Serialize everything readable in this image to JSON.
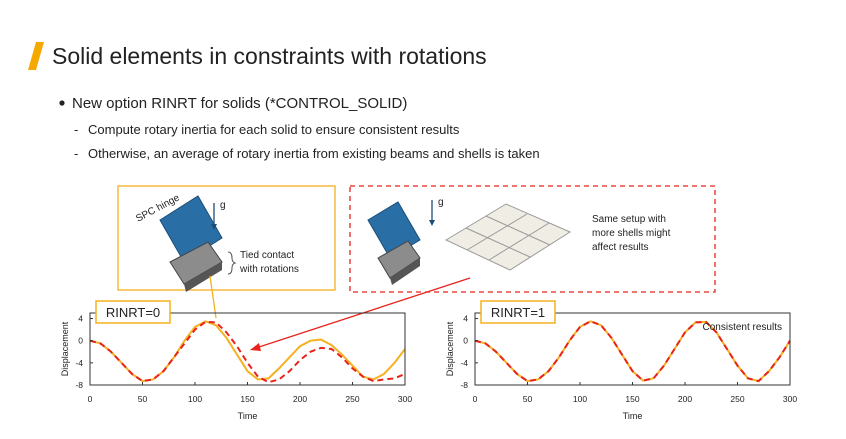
{
  "header": {
    "title": "Solid elements in constraints with rotations"
  },
  "bullets": {
    "main": "New option RINRT for solids (*CONTROL_SOLID)",
    "subs": [
      "Compute rotary inertia for each solid to ensure consistent results",
      "Otherwise, an average of rotary inertia from existing beams and shells is taken"
    ]
  },
  "diagram": {
    "left": {
      "hinge": "SPC hinge",
      "gravity": "g",
      "contact": [
        "Tied contact",
        "with rotations"
      ]
    },
    "right": {
      "gravity": "g",
      "note": [
        "Same setup with",
        "more shells might",
        "affect results"
      ]
    }
  },
  "chart_data": [
    {
      "type": "line",
      "label": "RINRT=0",
      "xlabel": "Time",
      "ylabel": "Displacement",
      "xlim": [
        0,
        300
      ],
      "ylim": [
        -8,
        5
      ],
      "xticks": [
        0,
        50,
        100,
        150,
        200,
        250,
        300
      ],
      "yticks": [
        4,
        0,
        -4,
        -8
      ],
      "x": [
        0,
        10,
        20,
        30,
        40,
        50,
        60,
        70,
        80,
        90,
        100,
        110,
        120,
        130,
        140,
        150,
        160,
        170,
        180,
        190,
        200,
        210,
        220,
        230,
        240,
        250,
        260,
        270,
        280,
        290,
        300
      ],
      "series": [
        {
          "color": "#f5b120",
          "dash": false,
          "values": [
            0,
            -0.5,
            -2,
            -4,
            -6,
            -7.3,
            -7,
            -5.5,
            -3,
            0,
            2.5,
            3.5,
            2.8,
            0.5,
            -2.5,
            -5.5,
            -7,
            -6.8,
            -5,
            -3,
            -1,
            0,
            0.2,
            -0.8,
            -2.5,
            -4.5,
            -6.5,
            -7,
            -6,
            -4,
            -1.5
          ]
        },
        {
          "color": "#e8241c",
          "dash": true,
          "values": [
            0,
            -0.5,
            -2,
            -4,
            -6,
            -7.3,
            -7,
            -5.5,
            -3,
            -0.5,
            2,
            3.4,
            3.3,
            1.5,
            -1,
            -4,
            -6.5,
            -7.5,
            -7,
            -5.5,
            -3.5,
            -2,
            -1.3,
            -1.5,
            -3,
            -5,
            -6.5,
            -7.3,
            -7,
            -6.8,
            -6
          ]
        }
      ]
    },
    {
      "type": "line",
      "label": "RINRT=1",
      "xlabel": "Time",
      "ylabel": "Displacement",
      "annotation": "Consistent results",
      "xlim": [
        0,
        300
      ],
      "ylim": [
        -8,
        5
      ],
      "xticks": [
        0,
        50,
        100,
        150,
        200,
        250,
        300
      ],
      "yticks": [
        4,
        0,
        -4,
        -8
      ],
      "x": [
        0,
        10,
        20,
        30,
        40,
        50,
        60,
        70,
        80,
        90,
        100,
        110,
        120,
        130,
        140,
        150,
        160,
        170,
        180,
        190,
        200,
        210,
        220,
        230,
        240,
        250,
        260,
        270,
        280,
        290,
        300
      ],
      "series": [
        {
          "color": "#f5b120",
          "dash": false,
          "values": [
            0,
            -0.5,
            -2,
            -4,
            -6,
            -7.3,
            -7,
            -5.5,
            -3,
            0,
            2.5,
            3.5,
            2.8,
            0.5,
            -2.5,
            -5.5,
            -7.2,
            -6.8,
            -4.5,
            -1.5,
            1.5,
            3.3,
            3.4,
            1.5,
            -1.5,
            -4.5,
            -6.8,
            -7.3,
            -5.5,
            -3,
            0
          ]
        },
        {
          "color": "#e8241c",
          "dash": true,
          "values": [
            0,
            -0.5,
            -2,
            -4,
            -6,
            -7.3,
            -7,
            -5.5,
            -3,
            0,
            2.5,
            3.5,
            2.8,
            0.5,
            -2.5,
            -5.5,
            -7.2,
            -6.8,
            -4.5,
            -1.5,
            1.5,
            3.3,
            3.4,
            1.5,
            -1.5,
            -4.5,
            -6.8,
            -7.3,
            -5.5,
            -3,
            0
          ]
        }
      ]
    }
  ]
}
